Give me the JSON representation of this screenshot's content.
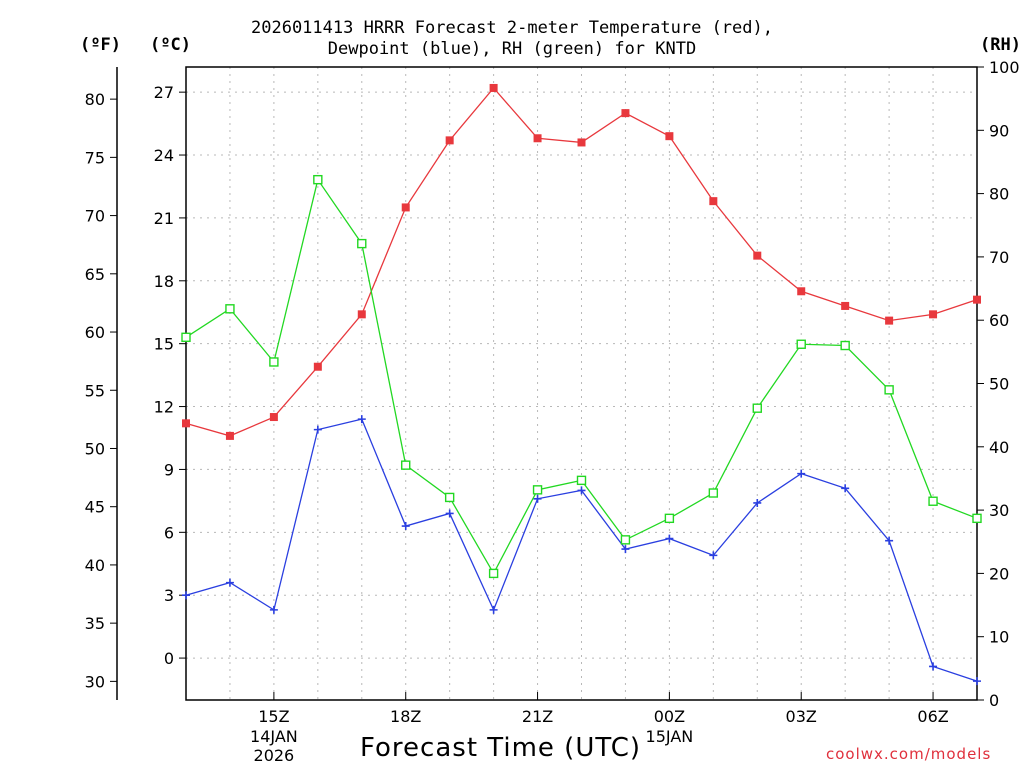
{
  "chart_data": {
    "type": "line",
    "title_line1": "2026011413 HRRR Forecast 2-meter Temperature (red),",
    "title_line2": "Dewpoint (blue), RH (green) for KNTD",
    "xlabel": "Forecast Time (UTC)",
    "credit": "coolwx.com/models",
    "units": {
      "fahrenheit": "(ºF)",
      "celsius": "(ºC)",
      "rh": "(RH)"
    },
    "x_hours": [
      13,
      14,
      15,
      16,
      17,
      18,
      19,
      20,
      21,
      22,
      23,
      24,
      25,
      26,
      27,
      28,
      29,
      30,
      31
    ],
    "xlim": [
      13,
      31
    ],
    "celsius_ticks": [
      0,
      3,
      6,
      9,
      12,
      15,
      18,
      21,
      24,
      27
    ],
    "fahrenheit_ticks": [
      30,
      35,
      40,
      45,
      50,
      55,
      60,
      65,
      70,
      75,
      80
    ],
    "rh_ticks": [
      0,
      10,
      20,
      30,
      40,
      50,
      60,
      70,
      80,
      90,
      100
    ],
    "ylim_celsius": [
      -2,
      28.2
    ],
    "ylim_rh": [
      0,
      100
    ],
    "x_ticks": [
      {
        "hour": 15,
        "label": "15Z",
        "date1": "14JAN",
        "date2": "2026"
      },
      {
        "hour": 18,
        "label": "18Z"
      },
      {
        "hour": 21,
        "label": "21Z"
      },
      {
        "hour": 24,
        "label": "00Z",
        "date1": "15JAN"
      },
      {
        "hour": 27,
        "label": "03Z"
      },
      {
        "hour": 30,
        "label": "06Z"
      }
    ],
    "series": [
      {
        "name": "Temperature (°C)",
        "color": "#e8383d",
        "marker": "filled-square",
        "axis": "celsius",
        "values": [
          11.2,
          10.6,
          11.5,
          13.9,
          16.4,
          21.5,
          24.7,
          27.2,
          24.8,
          24.6,
          26.0,
          24.9,
          21.8,
          19.2,
          17.5,
          16.8,
          16.1,
          16.4,
          17.1
        ]
      },
      {
        "name": "Dewpoint (°C)",
        "color": "#2a3fe0",
        "marker": "plus",
        "axis": "celsius",
        "values": [
          3.0,
          3.6,
          2.3,
          10.9,
          11.4,
          6.3,
          6.9,
          2.3,
          7.6,
          8.0,
          5.2,
          5.7,
          4.9,
          7.4,
          8.8,
          8.1,
          5.6,
          -0.4,
          -1.1
        ]
      },
      {
        "name": "RH (%)",
        "color": "#22d822",
        "marker": "open-square",
        "axis": "rh",
        "values": [
          57.3,
          61.8,
          53.4,
          82.2,
          72.1,
          37.1,
          32.0,
          20.0,
          33.2,
          34.7,
          25.3,
          28.7,
          32.7,
          46.1,
          56.2,
          56.0,
          49.0,
          31.4,
          28.7
        ]
      }
    ]
  }
}
